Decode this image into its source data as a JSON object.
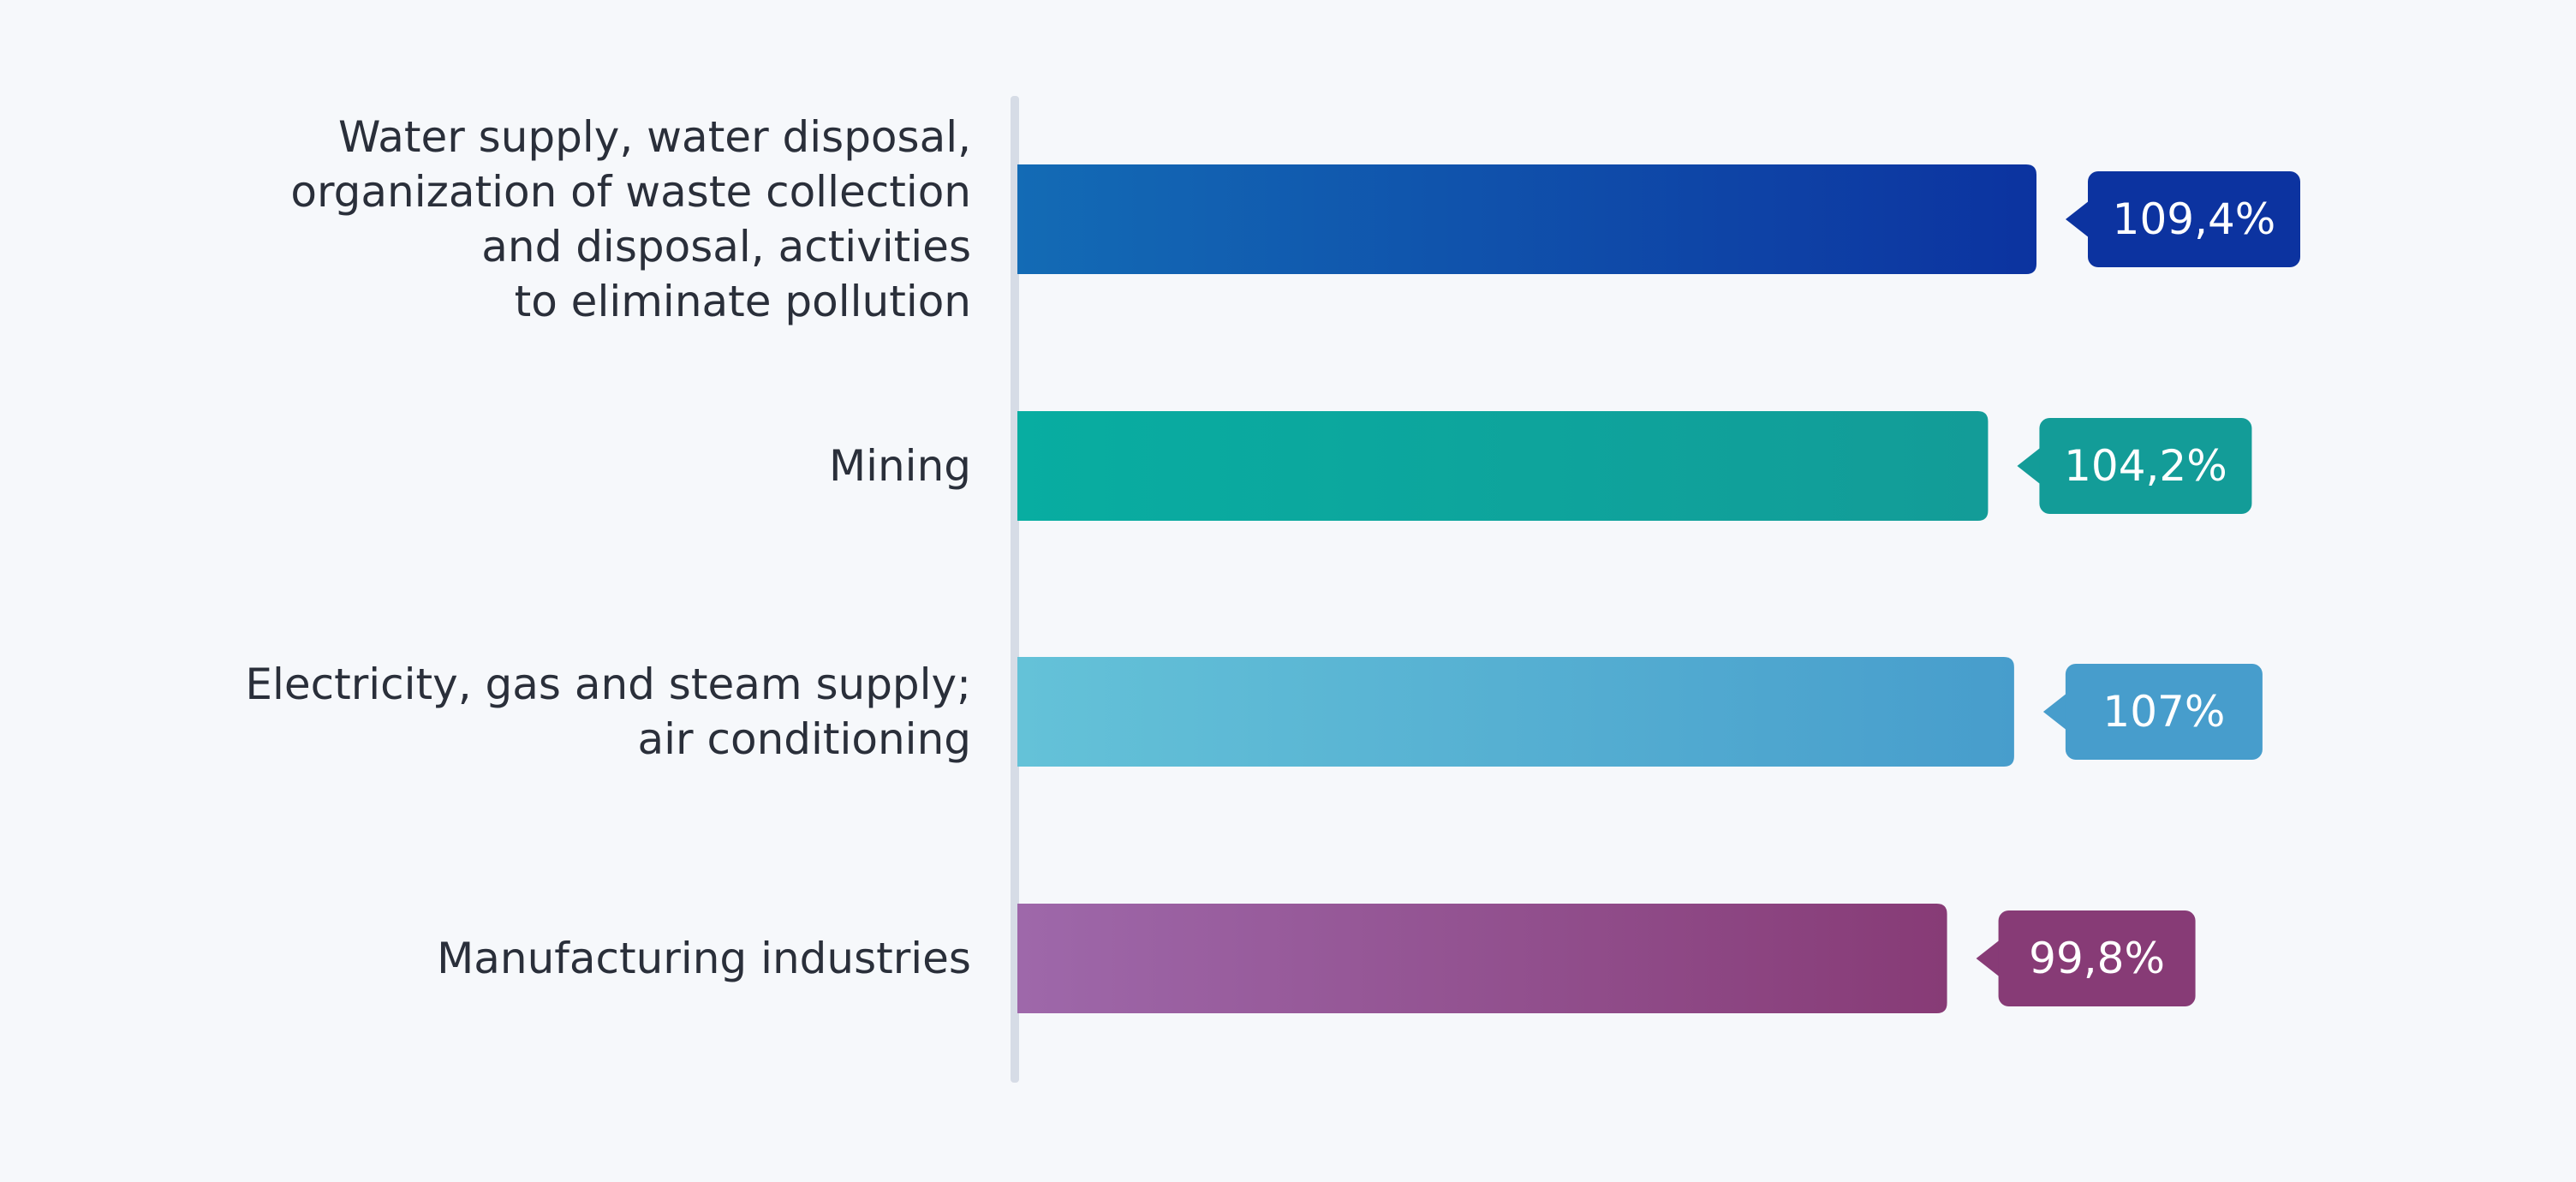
{
  "chart_data": {
    "type": "bar",
    "orientation": "horizontal",
    "title": "",
    "xlabel": "",
    "ylabel": "",
    "grid": false,
    "legend": "none",
    "xlim": [
      0,
      120
    ],
    "categories": [
      "Water supply, water disposal, organization of waste collection and disposal, activities to eliminate pollution",
      "Mining",
      "Electricity, gas and steam supply; air conditioning",
      "Manufacturing industries"
    ],
    "category_label_lines": [
      [
        "Water supply, water disposal,",
        "organization of waste collection",
        "and disposal, activities",
        "to eliminate pollution"
      ],
      [
        "Mining"
      ],
      [
        "Electricity, gas and steam supply;",
        "air conditioning"
      ],
      [
        "Manufacturing industries"
      ]
    ],
    "values": [
      109.4,
      104.2,
      107,
      99.8
    ],
    "value_labels": [
      "109,4%",
      "104,2%",
      "107%",
      "99,8%"
    ],
    "colors": [
      {
        "start": "#136bb5",
        "end": "#0c33a0"
      },
      {
        "start": "#08ada1",
        "end": "#139c98"
      },
      {
        "start": "#64c2d8",
        "end": "#479dcc"
      },
      {
        "start": "#9e68aa",
        "end": "#873b76"
      }
    ],
    "label_text_color": "#2a2f3a",
    "axis_color": "#d6dce6",
    "background": "#f6f8fb"
  }
}
